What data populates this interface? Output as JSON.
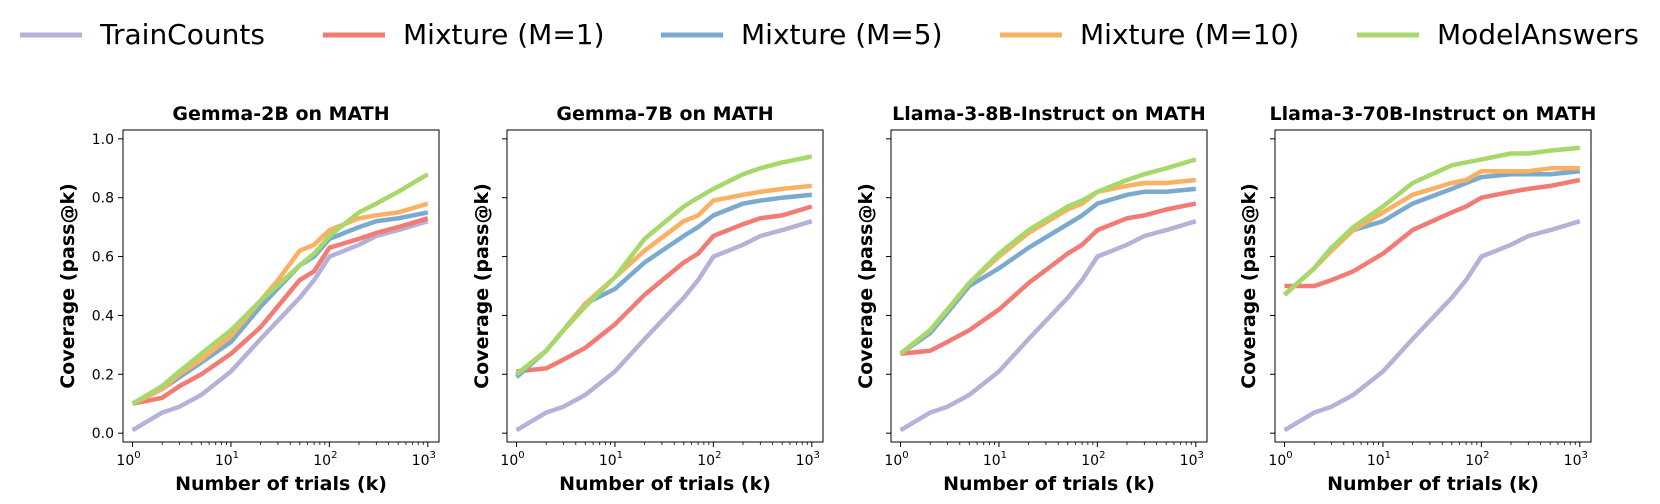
{
  "legend": {
    "placement": "top",
    "entries": [
      {
        "name": "TrainCounts",
        "color": "#b5b2d9"
      },
      {
        "name": "Mixture (M=1)",
        "color": "#f27b74"
      },
      {
        "name": "Mixture (M=5)",
        "color": "#7aaad0"
      },
      {
        "name": "Mixture (M=10)",
        "color": "#fbb063"
      },
      {
        "name": "ModelAnswers",
        "color": "#a6d86a"
      }
    ]
  },
  "chart_data": [
    {
      "type": "line",
      "title": "Gemma-2B on MATH",
      "xlabel": "Number of trials (k)",
      "ylabel": "Coverage (pass@k)",
      "xscale": "log",
      "xlim": [
        0.8,
        1300
      ],
      "ylim": [
        -0.03,
        1.03
      ],
      "xticks": [
        {
          "base": "10",
          "exp": "0"
        },
        {
          "base": "10",
          "exp": "1"
        },
        {
          "base": "10",
          "exp": "2"
        },
        {
          "base": "10",
          "exp": "3"
        }
      ],
      "yticks": [
        "0.0",
        "0.2",
        "0.4",
        "0.6",
        "0.8",
        "1.0"
      ],
      "grid": false,
      "series": [
        {
          "name": "TrainCounts",
          "color": "#b5b2d9",
          "x": [
            1,
            2,
            3,
            5,
            10,
            20,
            50,
            70,
            100,
            200,
            300,
            500,
            1000
          ],
          "y": [
            0.01,
            0.07,
            0.09,
            0.13,
            0.21,
            0.32,
            0.46,
            0.52,
            0.6,
            0.64,
            0.67,
            0.69,
            0.72
          ]
        },
        {
          "name": "Mixture (M=1)",
          "color": "#f27b74",
          "x": [
            1,
            2,
            3,
            5,
            10,
            20,
            50,
            70,
            100,
            200,
            300,
            500,
            1000
          ],
          "y": [
            0.1,
            0.12,
            0.16,
            0.2,
            0.27,
            0.36,
            0.52,
            0.55,
            0.63,
            0.66,
            0.68,
            0.7,
            0.73
          ]
        },
        {
          "name": "Mixture (M=5)",
          "color": "#7aaad0",
          "x": [
            1,
            2,
            3,
            5,
            10,
            20,
            50,
            70,
            100,
            200,
            300,
            500,
            1000
          ],
          "y": [
            0.1,
            0.15,
            0.19,
            0.24,
            0.31,
            0.43,
            0.57,
            0.6,
            0.66,
            0.7,
            0.72,
            0.73,
            0.75
          ]
        },
        {
          "name": "Mixture (M=10)",
          "color": "#fbb063",
          "x": [
            1,
            2,
            3,
            5,
            10,
            20,
            30,
            50,
            70,
            100,
            200,
            300,
            500,
            1000
          ],
          "y": [
            0.1,
            0.15,
            0.2,
            0.25,
            0.33,
            0.45,
            0.52,
            0.62,
            0.64,
            0.69,
            0.73,
            0.74,
            0.75,
            0.78
          ]
        },
        {
          "name": "ModelAnswers",
          "color": "#a6d86a",
          "x": [
            1,
            2,
            3,
            5,
            10,
            20,
            50,
            70,
            100,
            200,
            300,
            500,
            1000
          ],
          "y": [
            0.1,
            0.16,
            0.21,
            0.27,
            0.35,
            0.45,
            0.57,
            0.61,
            0.67,
            0.75,
            0.78,
            0.82,
            0.88
          ]
        }
      ]
    },
    {
      "type": "line",
      "title": "Gemma-7B on MATH",
      "xlabel": "Number of trials (k)",
      "ylabel": "Coverage (pass@k)",
      "xscale": "log",
      "xlim": [
        0.8,
        1300
      ],
      "ylim": [
        -0.03,
        1.03
      ],
      "xticks": [
        {
          "base": "10",
          "exp": "0"
        },
        {
          "base": "10",
          "exp": "1"
        },
        {
          "base": "10",
          "exp": "2"
        },
        {
          "base": "10",
          "exp": "3"
        }
      ],
      "yticks": [],
      "grid": false,
      "series": [
        {
          "name": "TrainCounts",
          "color": "#b5b2d9",
          "x": [
            1,
            2,
            3,
            5,
            10,
            20,
            50,
            70,
            100,
            200,
            300,
            500,
            1000
          ],
          "y": [
            0.01,
            0.07,
            0.09,
            0.13,
            0.21,
            0.32,
            0.46,
            0.52,
            0.6,
            0.64,
            0.67,
            0.69,
            0.72
          ]
        },
        {
          "name": "Mixture (M=1)",
          "color": "#f27b74",
          "x": [
            1,
            2,
            3,
            5,
            10,
            20,
            50,
            70,
            100,
            200,
            300,
            500,
            1000
          ],
          "y": [
            0.21,
            0.22,
            0.25,
            0.29,
            0.37,
            0.47,
            0.58,
            0.61,
            0.67,
            0.71,
            0.73,
            0.74,
            0.77
          ]
        },
        {
          "name": "Mixture (M=5)",
          "color": "#7aaad0",
          "x": [
            1,
            2,
            3,
            5,
            10,
            20,
            50,
            70,
            100,
            200,
            300,
            500,
            1000
          ],
          "y": [
            0.19,
            0.28,
            0.35,
            0.44,
            0.49,
            0.58,
            0.67,
            0.7,
            0.74,
            0.78,
            0.79,
            0.8,
            0.81
          ]
        },
        {
          "name": "Mixture (M=10)",
          "color": "#fbb063",
          "x": [
            1,
            2,
            3,
            5,
            10,
            20,
            50,
            70,
            100,
            200,
            300,
            500,
            1000
          ],
          "y": [
            0.2,
            0.28,
            0.35,
            0.44,
            0.53,
            0.62,
            0.72,
            0.74,
            0.79,
            0.81,
            0.82,
            0.83,
            0.84
          ]
        },
        {
          "name": "ModelAnswers",
          "color": "#a6d86a",
          "x": [
            1,
            2,
            3,
            5,
            10,
            20,
            50,
            70,
            100,
            200,
            300,
            500,
            1000
          ],
          "y": [
            0.2,
            0.28,
            0.35,
            0.43,
            0.53,
            0.66,
            0.77,
            0.8,
            0.83,
            0.88,
            0.9,
            0.92,
            0.94
          ]
        }
      ]
    },
    {
      "type": "line",
      "title": "Llama-3-8B-Instruct on MATH",
      "xlabel": "Number of trials (k)",
      "ylabel": "Coverage (pass@k)",
      "xscale": "log",
      "xlim": [
        0.8,
        1300
      ],
      "ylim": [
        -0.03,
        1.03
      ],
      "xticks": [
        {
          "base": "10",
          "exp": "0"
        },
        {
          "base": "10",
          "exp": "1"
        },
        {
          "base": "10",
          "exp": "2"
        },
        {
          "base": "10",
          "exp": "3"
        }
      ],
      "yticks": [],
      "grid": false,
      "series": [
        {
          "name": "TrainCounts",
          "color": "#b5b2d9",
          "x": [
            1,
            2,
            3,
            5,
            10,
            20,
            50,
            70,
            100,
            200,
            300,
            500,
            1000
          ],
          "y": [
            0.01,
            0.07,
            0.09,
            0.13,
            0.21,
            0.32,
            0.46,
            0.52,
            0.6,
            0.64,
            0.67,
            0.69,
            0.72
          ]
        },
        {
          "name": "Mixture (M=1)",
          "color": "#f27b74",
          "x": [
            1,
            2,
            3,
            5,
            10,
            20,
            50,
            70,
            100,
            200,
            300,
            500,
            1000
          ],
          "y": [
            0.27,
            0.28,
            0.31,
            0.35,
            0.42,
            0.51,
            0.61,
            0.64,
            0.69,
            0.73,
            0.74,
            0.76,
            0.78
          ]
        },
        {
          "name": "Mixture (M=5)",
          "color": "#7aaad0",
          "x": [
            1,
            2,
            3,
            5,
            10,
            20,
            50,
            70,
            100,
            200,
            300,
            500,
            1000
          ],
          "y": [
            0.27,
            0.34,
            0.41,
            0.5,
            0.56,
            0.63,
            0.71,
            0.74,
            0.78,
            0.81,
            0.82,
            0.82,
            0.83
          ]
        },
        {
          "name": "Mixture (M=10)",
          "color": "#fbb063",
          "x": [
            1,
            2,
            3,
            5,
            10,
            20,
            50,
            70,
            100,
            200,
            300,
            500,
            1000
          ],
          "y": [
            0.27,
            0.35,
            0.42,
            0.51,
            0.6,
            0.68,
            0.76,
            0.78,
            0.82,
            0.84,
            0.85,
            0.85,
            0.86
          ]
        },
        {
          "name": "ModelAnswers",
          "color": "#a6d86a",
          "x": [
            1,
            2,
            3,
            5,
            10,
            20,
            50,
            70,
            100,
            200,
            300,
            500,
            1000
          ],
          "y": [
            0.27,
            0.35,
            0.42,
            0.51,
            0.61,
            0.69,
            0.77,
            0.79,
            0.82,
            0.86,
            0.88,
            0.9,
            0.93
          ]
        }
      ]
    },
    {
      "type": "line",
      "title": "Llama-3-70B-Instruct on MATH",
      "xlabel": "Number of trials (k)",
      "ylabel": "Coverage (pass@k)",
      "xscale": "log",
      "xlim": [
        0.8,
        1300
      ],
      "ylim": [
        -0.03,
        1.03
      ],
      "xticks": [
        {
          "base": "10",
          "exp": "0"
        },
        {
          "base": "10",
          "exp": "1"
        },
        {
          "base": "10",
          "exp": "2"
        },
        {
          "base": "10",
          "exp": "3"
        }
      ],
      "yticks": [],
      "grid": false,
      "series": [
        {
          "name": "TrainCounts",
          "color": "#b5b2d9",
          "x": [
            1,
            2,
            3,
            5,
            10,
            20,
            50,
            70,
            100,
            200,
            300,
            500,
            1000
          ],
          "y": [
            0.01,
            0.07,
            0.09,
            0.13,
            0.21,
            0.32,
            0.46,
            0.52,
            0.6,
            0.64,
            0.67,
            0.69,
            0.72
          ]
        },
        {
          "name": "Mixture (M=1)",
          "color": "#f27b74",
          "x": [
            1,
            2,
            3,
            5,
            10,
            20,
            50,
            70,
            100,
            200,
            300,
            500,
            1000
          ],
          "y": [
            0.5,
            0.5,
            0.52,
            0.55,
            0.61,
            0.69,
            0.75,
            0.77,
            0.8,
            0.82,
            0.83,
            0.84,
            0.86
          ]
        },
        {
          "name": "Mixture (M=5)",
          "color": "#7aaad0",
          "x": [
            1,
            2,
            3,
            5,
            10,
            20,
            50,
            70,
            100,
            200,
            300,
            500,
            1000
          ],
          "y": [
            0.47,
            0.56,
            0.63,
            0.69,
            0.72,
            0.78,
            0.83,
            0.85,
            0.87,
            0.88,
            0.88,
            0.88,
            0.89
          ]
        },
        {
          "name": "Mixture (M=10)",
          "color": "#fbb063",
          "x": [
            1,
            2,
            3,
            5,
            10,
            20,
            50,
            70,
            100,
            200,
            300,
            500,
            1000
          ],
          "y": [
            0.47,
            0.56,
            0.62,
            0.69,
            0.75,
            0.81,
            0.85,
            0.86,
            0.89,
            0.89,
            0.89,
            0.9,
            0.9
          ]
        },
        {
          "name": "ModelAnswers",
          "color": "#a6d86a",
          "x": [
            1,
            2,
            3,
            5,
            10,
            20,
            50,
            70,
            100,
            200,
            300,
            500,
            1000
          ],
          "y": [
            0.47,
            0.56,
            0.63,
            0.7,
            0.77,
            0.85,
            0.91,
            0.92,
            0.93,
            0.95,
            0.95,
            0.96,
            0.97
          ]
        }
      ]
    }
  ]
}
